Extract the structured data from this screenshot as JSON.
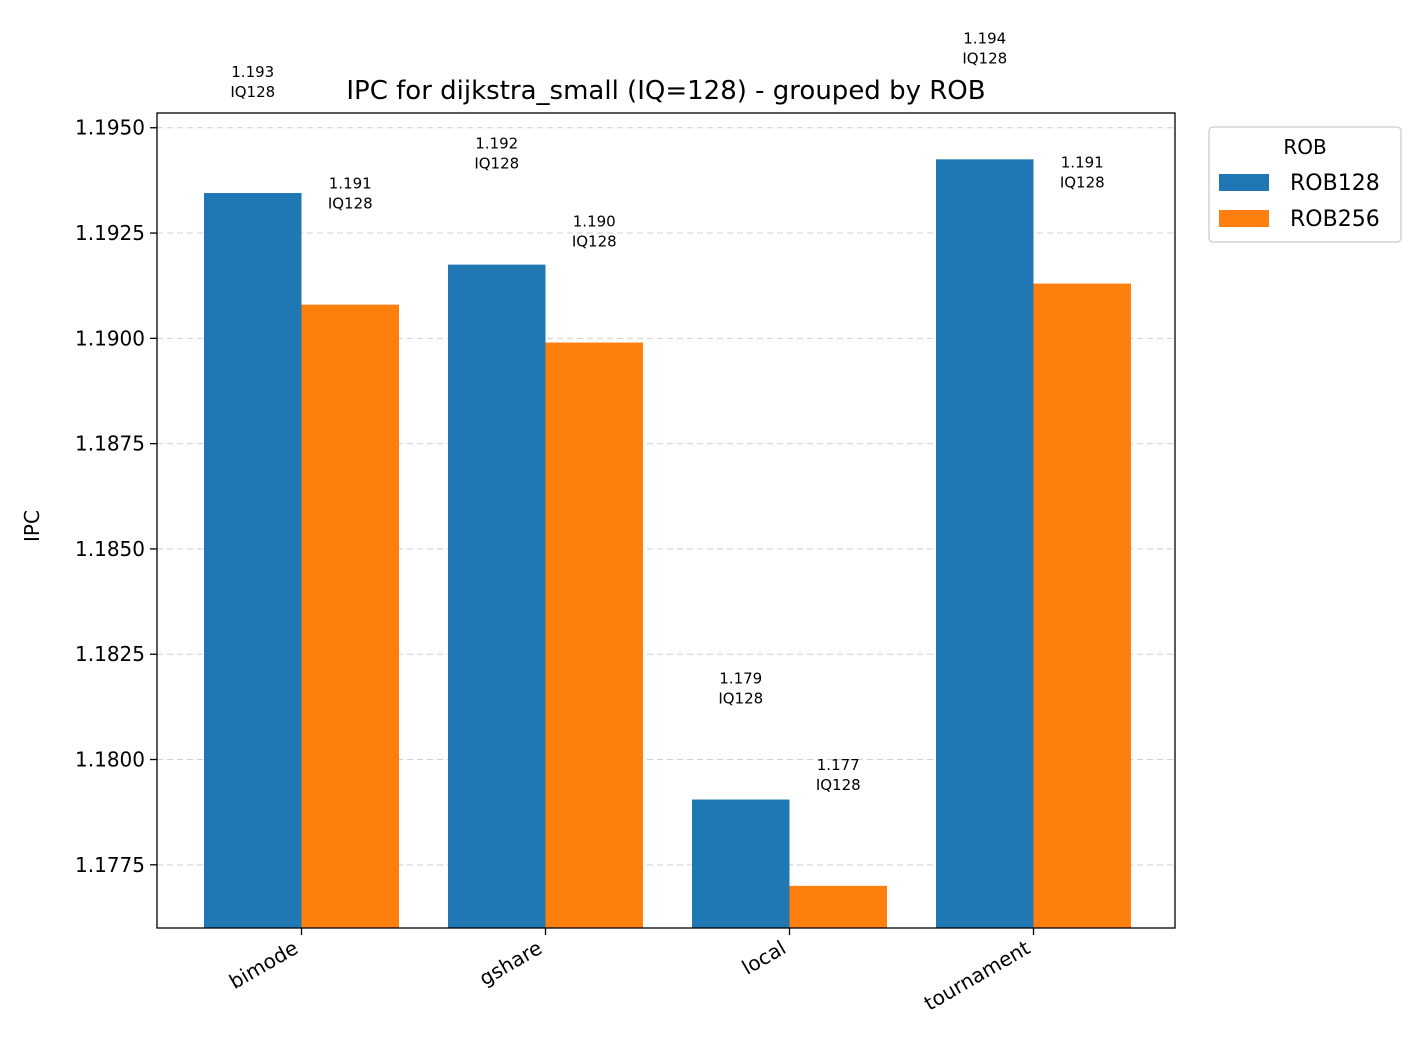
{
  "chart_data": {
    "type": "bar",
    "title": "IPC for dijkstra_small (IQ=128) - grouped by ROB",
    "xlabel": "",
    "ylabel": "IPC",
    "categories": [
      "bimode",
      "gshare",
      "local",
      "tournament"
    ],
    "series": [
      {
        "name": "ROB128",
        "color": "#1f77b4",
        "values": [
          1.19345,
          1.19175,
          1.17905,
          1.19425
        ],
        "labels": [
          "1.193\nIQ128",
          "1.192\nIQ128",
          "1.179\nIQ128",
          "1.194\nIQ128"
        ]
      },
      {
        "name": "ROB256",
        "color": "#ff7f0e",
        "values": [
          1.1908,
          1.1899,
          1.177,
          1.1913
        ],
        "labels": [
          "1.191\nIQ128",
          "1.190\nIQ128",
          "1.177\nIQ128",
          "1.191\nIQ128"
        ]
      }
    ],
    "ylim": [
      1.176,
      1.19535
    ],
    "yticks": [
      1.1775,
      1.18,
      1.1825,
      1.185,
      1.1875,
      1.19,
      1.1925,
      1.195
    ],
    "ytick_labels": [
      "1.1775",
      "1.1800",
      "1.1825",
      "1.1850",
      "1.1875",
      "1.1900",
      "1.1925",
      "1.1950"
    ],
    "grid": "y-dashed",
    "legend": {
      "title": "ROB",
      "placement": "outside-top-right"
    }
  }
}
